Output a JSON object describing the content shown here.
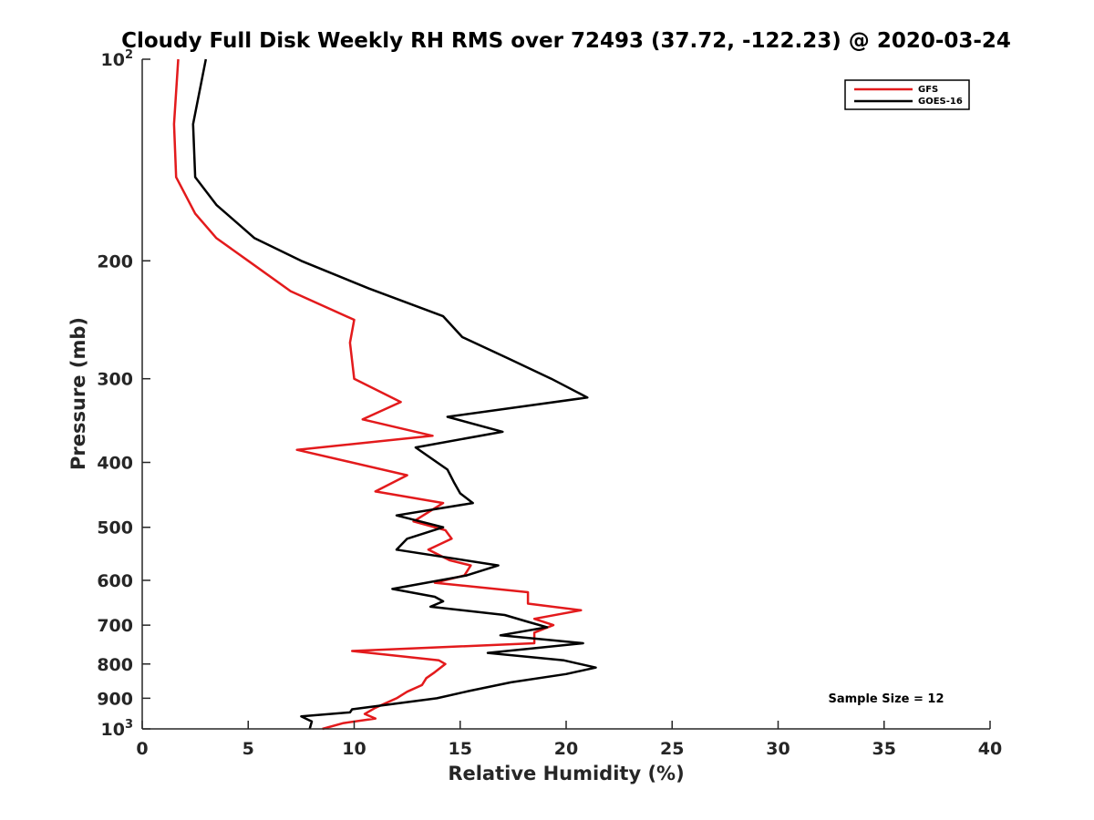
{
  "chart_data": {
    "type": "line",
    "title": "Cloudy Full Disk Weekly RH RMS over 72493 (37.72, -122.23) @ 2020-03-24",
    "xlabel": "Relative Humidity (%)",
    "ylabel": "Pressure (mb)",
    "xlim": [
      0,
      40
    ],
    "ylim": [
      100,
      1000
    ],
    "y_scale": "log",
    "y_reversed": true,
    "x_ticks": [
      {
        "value": 0,
        "label": "0"
      },
      {
        "value": 5,
        "label": "5"
      },
      {
        "value": 10,
        "label": "10"
      },
      {
        "value": 15,
        "label": "15"
      },
      {
        "value": 20,
        "label": "20"
      },
      {
        "value": 25,
        "label": "25"
      },
      {
        "value": 30,
        "label": "30"
      },
      {
        "value": 35,
        "label": "35"
      },
      {
        "value": 40,
        "label": "40"
      }
    ],
    "y_ticks": [
      {
        "value": 100,
        "label": "10",
        "sup": "2"
      },
      {
        "value": 200,
        "label": "200",
        "sup": ""
      },
      {
        "value": 300,
        "label": "300",
        "sup": ""
      },
      {
        "value": 400,
        "label": "400",
        "sup": ""
      },
      {
        "value": 500,
        "label": "500",
        "sup": ""
      },
      {
        "value": 600,
        "label": "600",
        "sup": ""
      },
      {
        "value": 700,
        "label": "700",
        "sup": ""
      },
      {
        "value": 800,
        "label": "800",
        "sup": ""
      },
      {
        "value": 900,
        "label": "900",
        "sup": ""
      },
      {
        "value": 1000,
        "label": "10",
        "sup": "3"
      }
    ],
    "grid": false,
    "legend_position": "top-right",
    "annotation": "Sample Size = 12",
    "series": [
      {
        "name": "GFS",
        "color": "#e31a1c",
        "points": [
          [
            1.7,
            100
          ],
          [
            1.5,
            125
          ],
          [
            1.6,
            150
          ],
          [
            2.5,
            170
          ],
          [
            3.5,
            185
          ],
          [
            5.0,
            200
          ],
          [
            7.0,
            222
          ],
          [
            10.0,
            245
          ],
          [
            9.8,
            265
          ],
          [
            9.9,
            282
          ],
          [
            10.0,
            300
          ],
          [
            12.2,
            325
          ],
          [
            10.4,
            345
          ],
          [
            13.7,
            365
          ],
          [
            7.3,
            383
          ],
          [
            12.5,
            418
          ],
          [
            11.0,
            442
          ],
          [
            14.2,
            460
          ],
          [
            12.8,
            490
          ],
          [
            14.3,
            505
          ],
          [
            14.6,
            520
          ],
          [
            13.5,
            540
          ],
          [
            14.5,
            560
          ],
          [
            15.5,
            570
          ],
          [
            15.2,
            590
          ],
          [
            13.8,
            605
          ],
          [
            18.2,
            625
          ],
          [
            18.2,
            650
          ],
          [
            20.7,
            665
          ],
          [
            18.5,
            685
          ],
          [
            19.4,
            700
          ],
          [
            18.5,
            718
          ],
          [
            18.5,
            745
          ],
          [
            9.9,
            765
          ],
          [
            14.0,
            790
          ],
          [
            14.3,
            800
          ],
          [
            13.8,
            823
          ],
          [
            13.4,
            840
          ],
          [
            13.2,
            860
          ],
          [
            12.5,
            880
          ],
          [
            12.0,
            900
          ],
          [
            11.0,
            930
          ],
          [
            10.5,
            950
          ],
          [
            11.0,
            965
          ],
          [
            9.5,
            980
          ],
          [
            8.5,
            1000
          ]
        ]
      },
      {
        "name": "GOES-16",
        "color": "#000000",
        "points": [
          [
            3.0,
            100
          ],
          [
            2.4,
            125
          ],
          [
            2.5,
            150
          ],
          [
            3.5,
            165
          ],
          [
            5.3,
            185
          ],
          [
            7.5,
            200
          ],
          [
            10.7,
            220
          ],
          [
            14.2,
            242
          ],
          [
            15.1,
            260
          ],
          [
            17.3,
            280
          ],
          [
            19.3,
            300
          ],
          [
            21.0,
            320
          ],
          [
            14.4,
            342
          ],
          [
            17.0,
            360
          ],
          [
            12.9,
            380
          ],
          [
            14.4,
            410
          ],
          [
            14.7,
            428
          ],
          [
            15.0,
            445
          ],
          [
            15.6,
            460
          ],
          [
            12.0,
            480
          ],
          [
            14.2,
            500
          ],
          [
            12.5,
            520
          ],
          [
            12.0,
            540
          ],
          [
            16.8,
            570
          ],
          [
            15.3,
            590
          ],
          [
            11.8,
            618
          ],
          [
            13.8,
            635
          ],
          [
            14.2,
            645
          ],
          [
            13.6,
            657
          ],
          [
            17.1,
            676
          ],
          [
            18.2,
            692
          ],
          [
            19.1,
            705
          ],
          [
            16.9,
            725
          ],
          [
            20.8,
            745
          ],
          [
            16.3,
            770
          ],
          [
            19.9,
            790
          ],
          [
            21.4,
            810
          ],
          [
            20.0,
            828
          ],
          [
            17.4,
            852
          ],
          [
            15.4,
            878
          ],
          [
            13.9,
            900
          ],
          [
            9.9,
            935
          ],
          [
            9.8,
            945
          ],
          [
            7.5,
            958
          ],
          [
            8.0,
            975
          ],
          [
            7.9,
            1000
          ]
        ]
      }
    ]
  }
}
